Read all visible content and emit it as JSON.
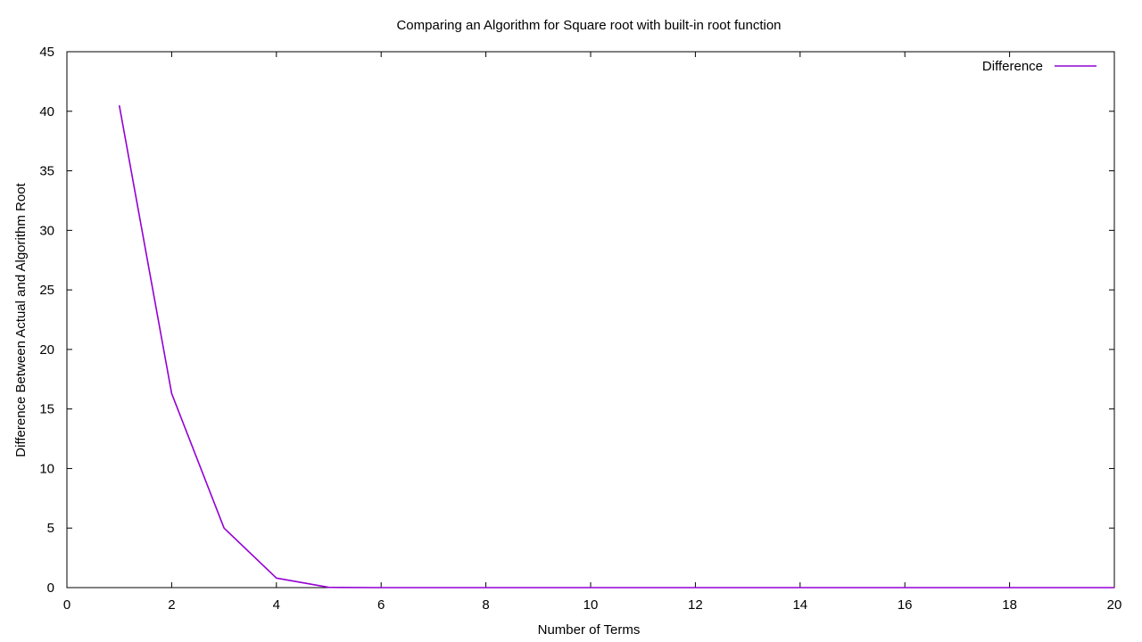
{
  "chart_data": {
    "type": "line",
    "title": "Comparing an Algorithm for Square root with built-in root function",
    "xlabel": "Number of Terms",
    "ylabel": "Difference Between Actual and Algorithm Root",
    "xlim": [
      0,
      20
    ],
    "ylim": [
      0,
      45
    ],
    "xticks": [
      0,
      2,
      4,
      6,
      8,
      10,
      12,
      14,
      16,
      18,
      20
    ],
    "yticks": [
      0,
      5,
      10,
      15,
      20,
      25,
      30,
      35,
      40,
      45
    ],
    "grid": false,
    "legend_position": "top-right",
    "series": [
      {
        "name": "Difference",
        "color": "#9400d3",
        "x": [
          1,
          2,
          3,
          4,
          5,
          6,
          7,
          8,
          9,
          10,
          11,
          12,
          13,
          14,
          15,
          16,
          17,
          18,
          19,
          20
        ],
        "y": [
          40.5,
          16.3,
          5.0,
          0.8,
          0.02,
          0,
          0,
          0,
          0,
          0,
          0,
          0,
          0,
          0,
          0,
          0,
          0,
          0,
          0,
          0
        ]
      }
    ]
  }
}
